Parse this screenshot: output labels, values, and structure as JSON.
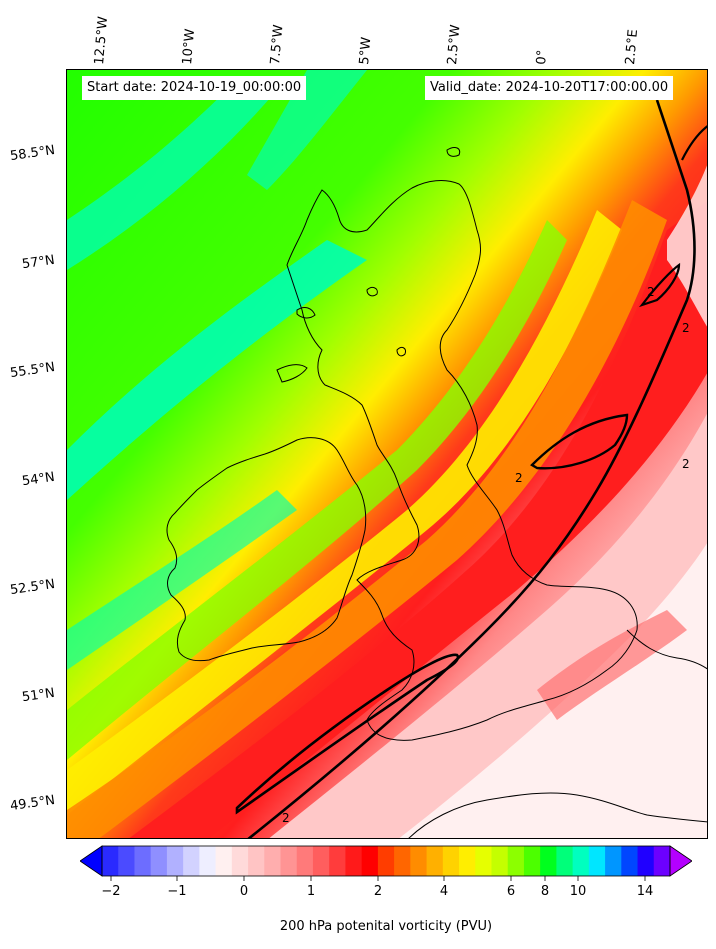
{
  "header": {
    "start_date": "Start date: 2024-10-19_00:00:00",
    "valid_date": "Valid_date: 2024-10-20T17:00:00.00"
  },
  "axes": {
    "longitude_labels": [
      "12.5°W",
      "10°W",
      "7.5°W",
      "5°W",
      "2.5°W",
      "0°",
      "2.5°E"
    ],
    "latitude_labels": [
      "58.5°N",
      "57°N",
      "55.5°N",
      "54°N",
      "52.5°N",
      "51°N",
      "49.5°N"
    ]
  },
  "contour_labels": [
    "2",
    "2",
    "2",
    "2",
    "2"
  ],
  "colorbar": {
    "label": "200 hPa potenital vorticity (PVU)",
    "tick_labels": [
      "−2",
      "−1",
      "0",
      "1",
      "2",
      "4",
      "6",
      "8",
      "10",
      "14"
    ],
    "colors": [
      "#0000ff",
      "#2a2aff",
      "#4b4bff",
      "#6d6dff",
      "#8f8fff",
      "#b1b1ff",
      "#d2d2ff",
      "#eeeeff",
      "#fff0f0",
      "#ffdada",
      "#ffc4c4",
      "#ffaeae",
      "#ff9494",
      "#ff7a7a",
      "#ff5e5e",
      "#ff3c3c",
      "#ff1a1a",
      "#ff0000",
      "#ff3d00",
      "#ff6600",
      "#ff8c00",
      "#ffb000",
      "#ffd200",
      "#ffee00",
      "#e6ff00",
      "#c4ff00",
      "#8cff00",
      "#4cff00",
      "#00ff1e",
      "#00ff7a",
      "#00ffbf",
      "#00e6ff",
      "#0096ff",
      "#0046ff",
      "#2000ff",
      "#6c00ff",
      "#b400ff"
    ]
  },
  "colors": {
    "green": "#22ff00",
    "lime": "#77ff00",
    "cyan": "#00ffb0",
    "yellow": "#ffee00",
    "orange": "#ff8c00",
    "red": "#ff1e1e",
    "pink": "#ff8888",
    "white": "#fff0f0"
  }
}
